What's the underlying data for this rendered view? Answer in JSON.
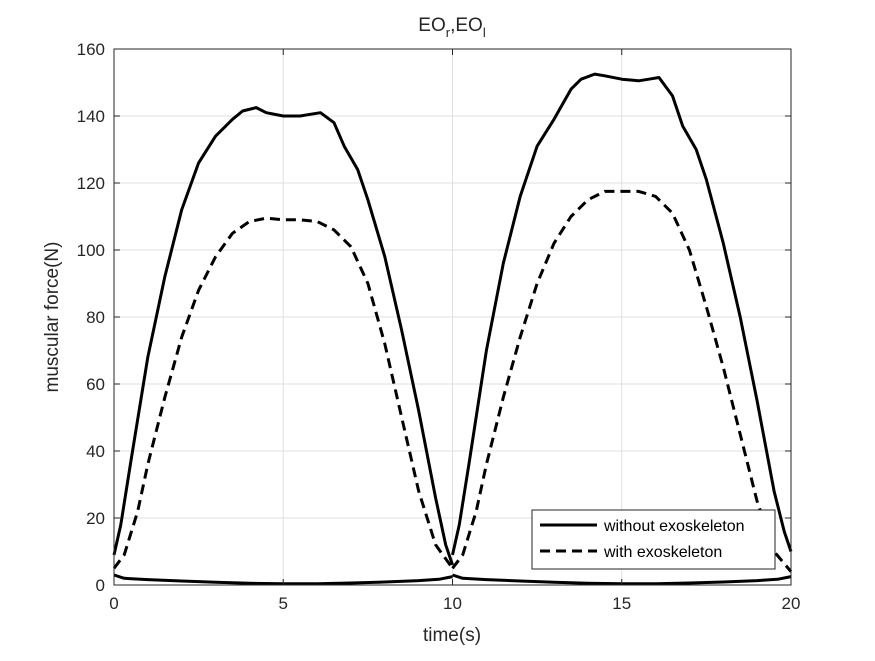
{
  "chart_data": {
    "type": "line",
    "title": {
      "base1": "EO",
      "sub1": "r",
      "separator": ",",
      "base2": "EO",
      "sub2": "l"
    },
    "xlabel": "time(s)",
    "ylabel": "muscular force(N)",
    "xlim": [
      0,
      20
    ],
    "ylim": [
      0,
      160
    ],
    "xticks": [
      0,
      5,
      10,
      15,
      20
    ],
    "yticks": [
      0,
      20,
      40,
      60,
      80,
      100,
      120,
      140,
      160
    ],
    "grid": true,
    "legend_position": "bottom-right",
    "series": [
      {
        "name": "without exoskeleton",
        "style": "solid",
        "color": "#000000",
        "segments": [
          {
            "x": [
              0,
              0.2,
              0.5,
              1,
              1.5,
              2,
              2.5,
              3,
              3.5,
              3.8,
              4.2,
              4.5,
              5,
              5.5,
              5.8,
              6.1,
              6.5,
              6.8,
              7.2,
              7.5,
              8,
              8.5,
              9,
              9.5,
              9.8,
              10
            ],
            "y": [
              9,
              18,
              37,
              68,
              92,
              112,
              126,
              134,
              139,
              141.5,
              142.5,
              141,
              140,
              140,
              140.5,
              141,
              138,
              131,
              124,
              115,
              98,
              76,
              52,
              26,
              12,
              6
            ]
          },
          {
            "x": [
              0,
              0.3,
              1,
              2,
              3,
              4,
              5,
              6,
              7,
              8,
              9,
              9.6,
              10
            ],
            "y": [
              3,
              2,
              1.6,
              1.2,
              0.8,
              0.5,
              0.4,
              0.4,
              0.6,
              0.9,
              1.3,
              1.7,
              2.5
            ]
          },
          {
            "x": [
              10,
              10.2,
              10.5,
              11,
              11.5,
              12,
              12.5,
              13,
              13.5,
              13.8,
              14.2,
              14.5,
              15,
              15.5,
              15.8,
              16.1,
              16.5,
              16.8,
              17.2,
              17.5,
              18,
              18.5,
              19,
              19.5,
              19.8,
              20
            ],
            "y": [
              9,
              18,
              37,
              70,
              96,
              116,
              131,
              139,
              148,
              151,
              152.5,
              152,
              151,
              150.5,
              151,
              151.5,
              146,
              137,
              130,
              121,
              102,
              80,
              55,
              28,
              16,
              10
            ]
          },
          {
            "x": [
              10,
              10.3,
              11,
              12,
              13,
              14,
              15,
              16,
              17,
              18,
              19,
              19.6,
              20
            ],
            "y": [
              3,
              2,
              1.6,
              1.2,
              0.8,
              0.5,
              0.4,
              0.4,
              0.6,
              0.9,
              1.3,
              1.7,
              2.5
            ]
          }
        ]
      },
      {
        "name": "with exoskeleton",
        "style": "dashed",
        "color": "#000000",
        "segments": [
          {
            "x": [
              0,
              0.3,
              0.7,
              1,
              1.5,
              2,
              2.5,
              3,
              3.5,
              4,
              4.5,
              5,
              5.5,
              6,
              6.5,
              7,
              7.5,
              8,
              8.5,
              9,
              9.5,
              10
            ],
            "y": [
              5,
              9,
              22,
              36,
              56,
              74,
              88,
              98,
              105,
              108.5,
              109.5,
              109,
              109,
              108.5,
              106,
              101,
              90,
              72,
              50,
              28,
              12,
              5
            ]
          },
          {
            "x": [
              10,
              10.3,
              10.7,
              11,
              11.5,
              12,
              12.5,
              13,
              13.5,
              14,
              14.5,
              15,
              15.5,
              16,
              16.5,
              17,
              17.5,
              18,
              18.5,
              19,
              19.5,
              20
            ],
            "y": [
              5,
              9,
              22,
              36,
              56,
              74,
              90,
              102,
              110,
              115,
              117.5,
              117.5,
              117.5,
              116,
              111,
              100,
              83,
              65,
              45,
              25,
              10,
              4
            ]
          }
        ]
      }
    ]
  }
}
